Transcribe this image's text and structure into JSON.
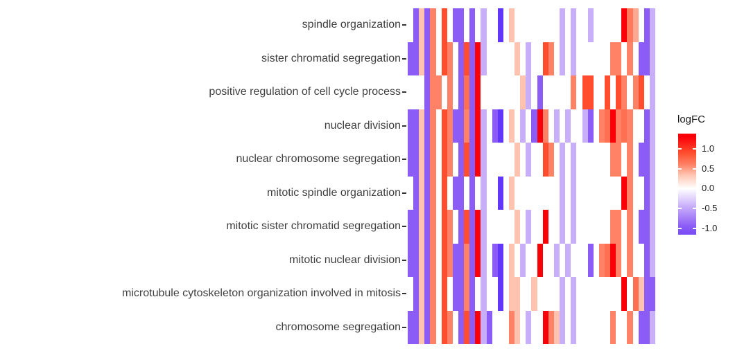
{
  "chart_data": {
    "type": "heatmap",
    "title": "",
    "xlabel": "",
    "ylabel": "",
    "x_axis_labels_visible": false,
    "n_columns": 44,
    "y_categories": [
      "spindle organization",
      "sister chromatid segregation",
      "positive regulation of cell cycle process",
      "nuclear division",
      "nuclear chromosome segregation",
      "mitotic spindle organization",
      "mitotic sister chromatid segregation",
      "mitotic nuclear division",
      "microtubule cytoskeleton organization involved in mitosis",
      "chromosome segregation"
    ],
    "legend": {
      "title": "logFC",
      "tick_labels": [
        "1.0",
        "0.5",
        "0.0",
        "-0.5",
        "-1.0"
      ],
      "tick_values": [
        1.0,
        0.5,
        0.0,
        -0.5,
        -1.0
      ],
      "scale_range": [
        -1.16,
        1.38
      ],
      "high_color": "#fa0008",
      "mid_color": "#ffffff",
      "low_color": "#8b5cf6"
    },
    "color_stops": [
      [
        -1.45,
        "#5b33f9"
      ],
      [
        -0.95,
        "#8b5cf6"
      ],
      [
        -0.45,
        "#c9affa"
      ],
      [
        0.0,
        "#ffffff"
      ],
      [
        0.35,
        "#ffc3af"
      ],
      [
        0.6,
        "#ff8266"
      ],
      [
        0.9,
        "#ff4d2e"
      ],
      [
        1.3,
        "#fa0008"
      ]
    ],
    "series": [
      {
        "name": "spindle organization",
        "values": [
          null,
          -0.95,
          0.35,
          -0.95,
          0.6,
          null,
          0.9,
          null,
          -0.95,
          -0.95,
          null,
          -0.95,
          null,
          -0.45,
          null,
          null,
          -1.4,
          null,
          0.35,
          null,
          null,
          null,
          null,
          null,
          null,
          null,
          null,
          -0.45,
          null,
          -0.45,
          null,
          null,
          -0.45,
          null,
          null,
          null,
          null,
          null,
          1.3,
          0.65,
          0.45,
          null,
          -0.95,
          -0.45
        ]
      },
      {
        "name": "sister chromatid segregation",
        "values": [
          -0.95,
          -0.95,
          0.35,
          -0.95,
          0.6,
          null,
          0.9,
          0.6,
          null,
          -0.95,
          0.9,
          -0.95,
          1.3,
          -0.45,
          null,
          null,
          null,
          null,
          null,
          0.35,
          null,
          -0.45,
          null,
          null,
          0.9,
          0.6,
          null,
          -0.45,
          null,
          -0.45,
          null,
          null,
          null,
          null,
          null,
          null,
          0.6,
          0.6,
          null,
          0.6,
          null,
          -0.95,
          -0.95,
          -0.45
        ]
      },
      {
        "name": "positive regulation of cell cycle process",
        "values": [
          null,
          null,
          null,
          -0.95,
          0.6,
          0.6,
          null,
          0.6,
          null,
          -0.95,
          0.7,
          -0.95,
          1.3,
          null,
          null,
          null,
          null,
          null,
          null,
          null,
          0.35,
          -0.45,
          null,
          -0.95,
          null,
          null,
          null,
          null,
          null,
          0.6,
          null,
          0.9,
          0.9,
          null,
          null,
          0.9,
          null,
          0.9,
          0.6,
          null,
          0.6,
          0.9,
          null,
          -0.45
        ]
      },
      {
        "name": "nuclear division",
        "values": [
          -0.95,
          -0.95,
          0.35,
          -0.95,
          0.6,
          null,
          0.9,
          0.6,
          -0.95,
          -0.95,
          0.6,
          -0.95,
          1.3,
          -0.45,
          null,
          -0.95,
          -1.4,
          null,
          0.35,
          null,
          -0.45,
          null,
          -0.95,
          1.3,
          0.6,
          null,
          -0.45,
          null,
          -0.45,
          null,
          null,
          -0.45,
          -0.95,
          null,
          0.6,
          0.7,
          1.3,
          0.6,
          0.7,
          0.6,
          null,
          null,
          -0.95,
          -0.45
        ]
      },
      {
        "name": "nuclear chromosome segregation",
        "values": [
          -0.95,
          -0.95,
          0.35,
          -0.95,
          0.6,
          null,
          0.9,
          0.6,
          null,
          -0.95,
          0.9,
          -0.95,
          1.3,
          -0.45,
          null,
          null,
          null,
          null,
          null,
          0.35,
          null,
          -0.45,
          null,
          null,
          0.9,
          0.6,
          null,
          -0.45,
          null,
          -0.45,
          null,
          null,
          null,
          null,
          null,
          null,
          0.6,
          0.6,
          null,
          0.6,
          null,
          -0.95,
          -0.95,
          -0.45
        ]
      },
      {
        "name": "mitotic spindle organization",
        "values": [
          null,
          -0.95,
          0.35,
          -0.95,
          0.6,
          null,
          0.9,
          null,
          -0.95,
          -0.95,
          null,
          -0.95,
          null,
          -0.45,
          null,
          null,
          -1.4,
          null,
          0.35,
          null,
          null,
          null,
          null,
          null,
          null,
          null,
          null,
          -0.45,
          null,
          -0.45,
          null,
          null,
          null,
          null,
          null,
          null,
          null,
          null,
          1.3,
          0.6,
          null,
          null,
          -0.95,
          -0.45
        ]
      },
      {
        "name": "mitotic sister chromatid segregation",
        "values": [
          -0.95,
          -0.95,
          0.35,
          -0.95,
          0.6,
          null,
          0.9,
          0.6,
          null,
          -0.95,
          0.9,
          -0.95,
          1.3,
          -0.45,
          null,
          null,
          null,
          null,
          null,
          0.35,
          null,
          -0.45,
          null,
          null,
          1.3,
          null,
          null,
          -0.45,
          null,
          -0.45,
          null,
          null,
          null,
          null,
          null,
          null,
          0.6,
          0.6,
          null,
          0.6,
          null,
          -0.95,
          -0.95,
          -0.45
        ]
      },
      {
        "name": "mitotic nuclear division",
        "values": [
          -0.95,
          -0.95,
          0.35,
          -0.95,
          0.6,
          null,
          0.9,
          0.6,
          -0.95,
          -0.95,
          0.6,
          -0.95,
          1.3,
          -0.45,
          null,
          -0.95,
          -1.4,
          null,
          0.35,
          null,
          -0.45,
          null,
          null,
          1.3,
          null,
          null,
          -0.45,
          null,
          -0.45,
          null,
          null,
          null,
          -0.95,
          null,
          0.6,
          0.7,
          1.3,
          0.6,
          null,
          0.6,
          null,
          null,
          -0.95,
          -0.45
        ]
      },
      {
        "name": "microtubule cytoskeleton organization involved in mitosis",
        "values": [
          null,
          -0.95,
          0.35,
          -0.95,
          0.6,
          null,
          0.9,
          null,
          -0.95,
          -0.95,
          0.6,
          -0.95,
          null,
          -0.45,
          null,
          null,
          -1.4,
          null,
          0.35,
          0.35,
          null,
          null,
          0.35,
          null,
          null,
          null,
          null,
          -0.45,
          null,
          -0.45,
          null,
          null,
          null,
          null,
          null,
          null,
          null,
          null,
          1.3,
          null,
          0.7,
          0.35,
          -0.95,
          -0.95
        ]
      },
      {
        "name": "chromosome segregation",
        "values": [
          -0.95,
          -0.95,
          0.35,
          -0.95,
          0.6,
          null,
          0.9,
          0.6,
          null,
          -0.95,
          0.9,
          -0.95,
          1.3,
          -0.45,
          -0.95,
          null,
          null,
          null,
          0.6,
          0.35,
          null,
          -0.45,
          null,
          null,
          1.3,
          0.6,
          0.35,
          -0.45,
          null,
          -0.45,
          null,
          null,
          null,
          null,
          null,
          null,
          0.6,
          null,
          null,
          0.6,
          null,
          -0.95,
          -0.95,
          -0.45
        ]
      }
    ]
  },
  "colors": {
    "axis_text": "#404040",
    "axis_tick": "#333333",
    "legend_text": "#1a1a1a",
    "background": "#ffffff"
  }
}
